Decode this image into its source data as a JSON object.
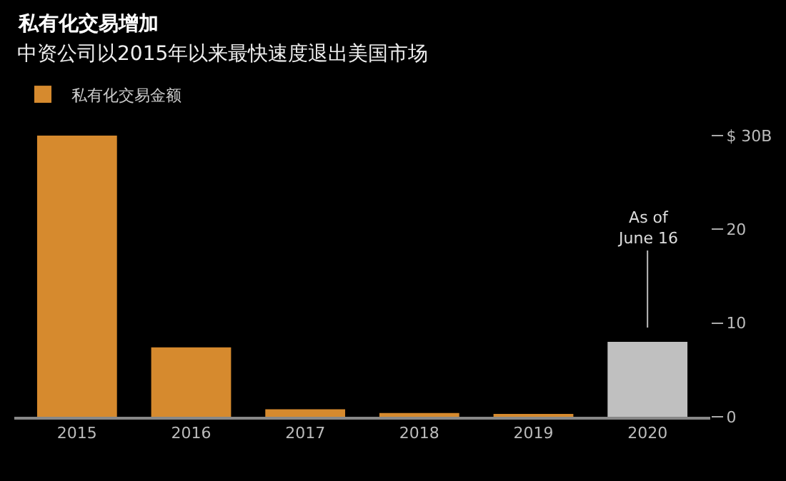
{
  "chart_data": {
    "type": "bar",
    "title": "私有化交易增加",
    "subtitle": "中资公司以2015年以来最快速度退出美国市场",
    "categories": [
      "2015",
      "2016",
      "2017",
      "2018",
      "2019",
      "2020"
    ],
    "series": [
      {
        "name": "私有化交易金额",
        "colors": [
          "#d68a2e",
          "#d68a2e",
          "#d68a2e",
          "#d68a2e",
          "#d68a2e",
          "#c0c0c0"
        ],
        "values": [
          30,
          7.4,
          0.8,
          0.4,
          0.2,
          8
        ]
      }
    ],
    "ylim": [
      0,
      30
    ],
    "yticks": [
      {
        "value": 0,
        "label": "0"
      },
      {
        "value": 10,
        "label": "10"
      },
      {
        "value": 20,
        "label": "20"
      },
      {
        "value": 30,
        "label": "$ 30B"
      }
    ],
    "grid": false,
    "legend": "top left",
    "annotations": [
      {
        "text": "As of\nJune 16",
        "x": "2020",
        "y": 8
      }
    ]
  }
}
